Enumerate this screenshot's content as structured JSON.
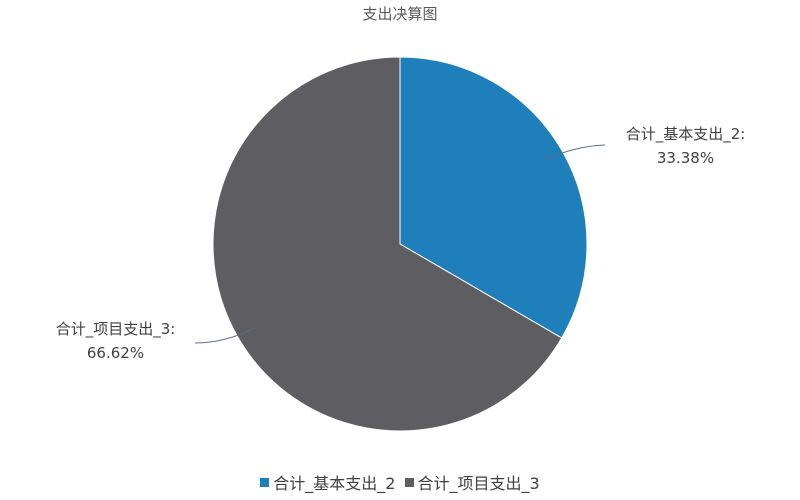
{
  "chart_data": {
    "type": "pie",
    "title": "支出决算图",
    "slices": [
      {
        "name": "合计_基本支出_2",
        "value": 33.38,
        "label": "合计_基本支出_2:",
        "value_label": "33.38%",
        "color": "#1f7fba"
      },
      {
        "name": "合计_项目支出_3",
        "value": 66.62,
        "label": "合计_项目支出_3:",
        "value_label": "66.62%",
        "color": "#5e5d62"
      }
    ],
    "start_angle": "12 o'clock, clockwise",
    "legend_position": "bottom"
  }
}
